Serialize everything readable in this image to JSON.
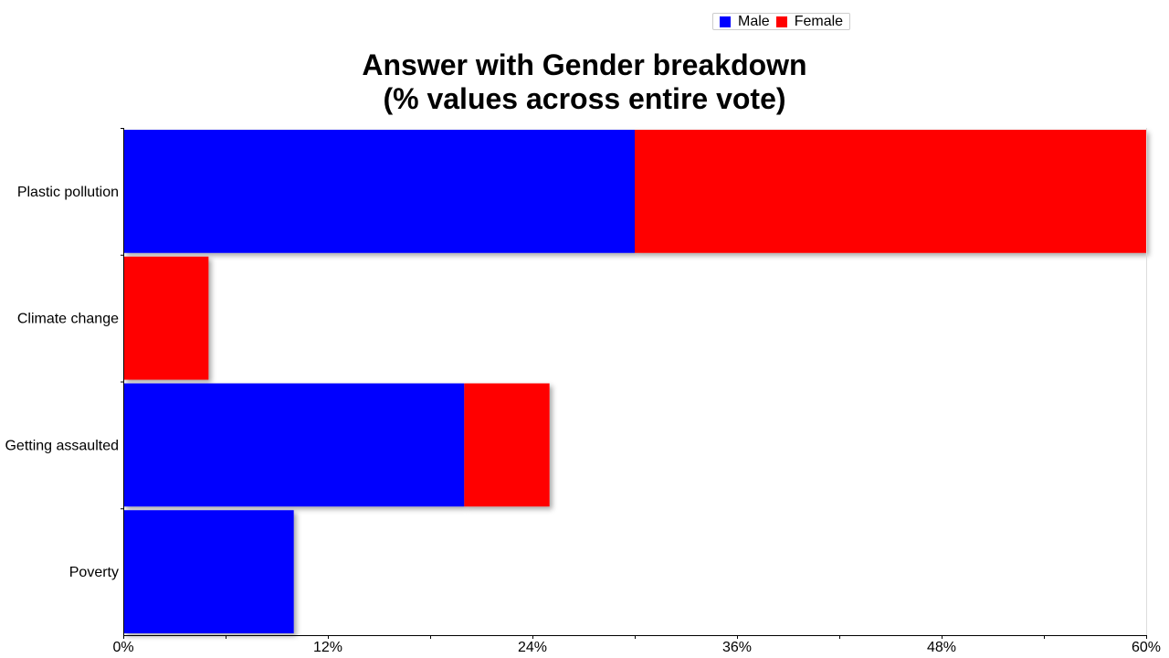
{
  "chart_data": {
    "type": "bar",
    "orientation": "horizontal",
    "stacked": true,
    "title_lines": [
      "Answer with Gender breakdown",
      "(% values across entire vote)"
    ],
    "categories": [
      "Plastic pollution",
      "Climate change",
      "Getting assaulted",
      "Poverty"
    ],
    "series": [
      {
        "name": "Male",
        "color": "#0000ff",
        "values": [
          30,
          0,
          20,
          10
        ]
      },
      {
        "name": "Female",
        "color": "#ff0000",
        "values": [
          30,
          5,
          5,
          0
        ]
      }
    ],
    "xlim": [
      0,
      60
    ],
    "xticks": [
      0,
      12,
      24,
      36,
      48,
      60
    ],
    "xtick_labels": [
      "0%",
      "12%",
      "24%",
      "36%",
      "48%",
      "60%"
    ],
    "legend_position": "top-right",
    "grid": false
  }
}
